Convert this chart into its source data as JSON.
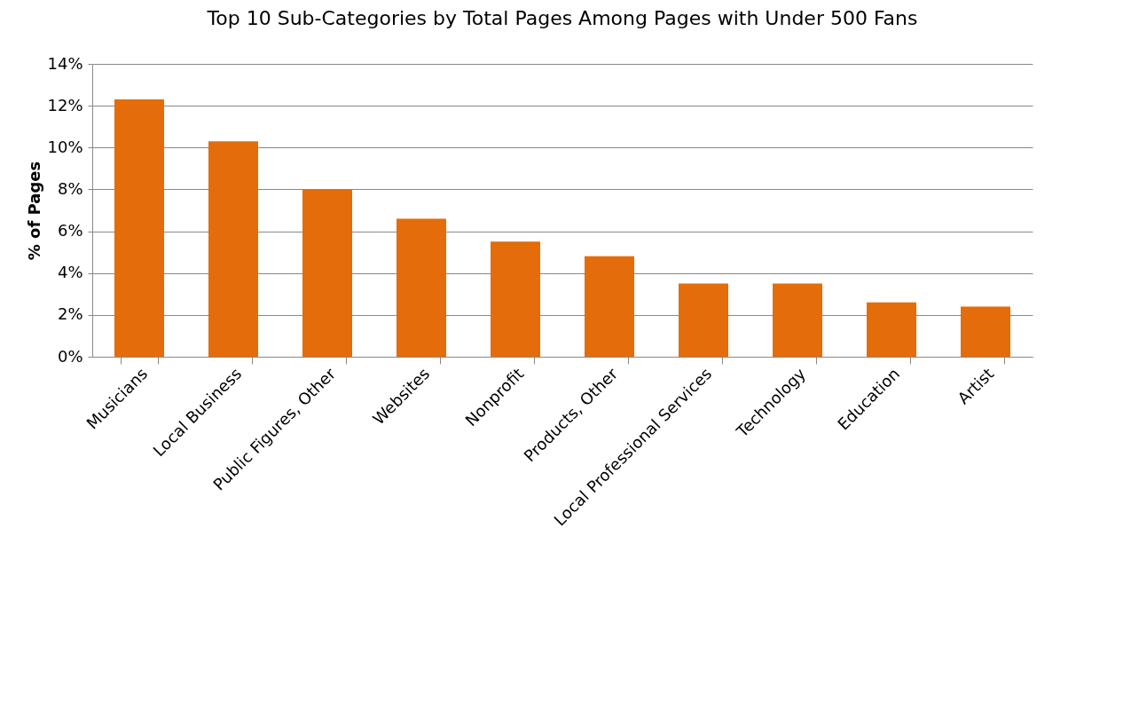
{
  "chart_data": {
    "type": "bar",
    "title": "Top 10 Sub-Categories by Total Pages Among Pages with Under 500 Fans",
    "ylabel": "% of Pages",
    "categories": [
      "Musicians",
      "Local Business",
      "Public Figures, Other",
      "Websites",
      "Nonprofit",
      "Products, Other",
      "Local Professional Services",
      "Technology",
      "Education",
      "Artist"
    ],
    "values": [
      12.3,
      10.3,
      8.0,
      6.6,
      5.5,
      4.8,
      3.5,
      3.5,
      2.6,
      2.4
    ],
    "color": "#e46c0a",
    "ylim": [
      0,
      14
    ],
    "yticks": [
      {
        "value": 0,
        "label": "0%"
      },
      {
        "value": 2,
        "label": "2%"
      },
      {
        "value": 4,
        "label": "4%"
      },
      {
        "value": 6,
        "label": "6%"
      },
      {
        "value": 8,
        "label": "8%"
      },
      {
        "value": 10,
        "label": "10%"
      },
      {
        "value": 12,
        "label": "12%"
      },
      {
        "value": 14,
        "label": "14%"
      }
    ],
    "grid": "y"
  }
}
